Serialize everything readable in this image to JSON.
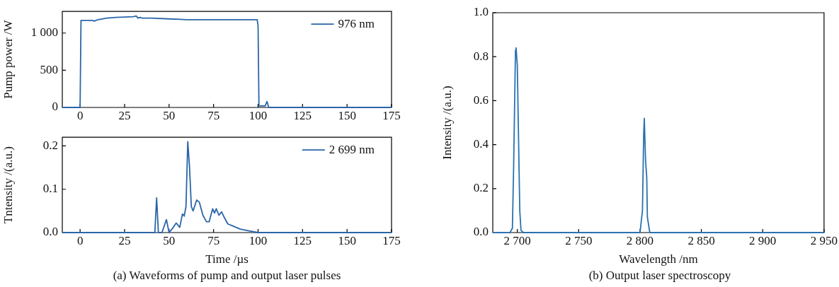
{
  "chart_data": [
    {
      "type": "line",
      "ylabel": "Pump power /W",
      "xlim": [
        -10,
        175
      ],
      "xticks": [
        0,
        25,
        50,
        75,
        100,
        125,
        150,
        175
      ],
      "ylim": [
        0,
        1290
      ],
      "yticks": [
        0,
        500,
        {
          "value": 1000,
          "label": "1 000"
        }
      ],
      "legend": "top right",
      "series": [
        {
          "name": "976 nm",
          "color": "#2b65a8",
          "x": [
            -10,
            -1,
            0,
            0.5,
            7,
            8,
            10,
            15,
            20,
            30,
            31.5,
            32.5,
            33.5,
            35,
            40,
            50,
            60,
            80,
            99.5,
            100,
            100.5,
            104,
            105,
            106,
            110,
            130,
            175
          ],
          "values": [
            0,
            0,
            0,
            1170,
            1170,
            1160,
            1180,
            1200,
            1210,
            1220,
            1230,
            1200,
            1210,
            1200,
            1200,
            1190,
            1180,
            1180,
            1180,
            1100,
            20,
            20,
            80,
            0,
            0,
            0,
            0
          ]
        }
      ]
    },
    {
      "type": "line",
      "xlabel": "Time /µs",
      "ylabel": "Tntensity /(a.u.)",
      "xlim": [
        -10,
        175
      ],
      "xticks": [
        0,
        25,
        50,
        75,
        100,
        125,
        150,
        175
      ],
      "ylim": [
        0,
        0.22
      ],
      "yticks": [
        {
          "value": 0,
          "label": "0.0"
        },
        0.1,
        0.2
      ],
      "legend": "top right",
      "annotations": [
        "(a) Waveforms of pump and output laser pulses"
      ],
      "series": [
        {
          "name": "2 699 nm",
          "color": "#2b65a8",
          "x": [
            -10,
            42,
            43,
            44,
            46,
            48.5,
            50,
            52,
            54,
            56,
            57.5,
            58.5,
            59.5,
            60.5,
            61.5,
            62.5,
            63.5,
            65.5,
            67,
            69,
            71,
            72.5,
            74.5,
            75.5,
            76.5,
            78,
            79.5,
            81,
            83,
            86,
            90,
            95,
            100,
            101,
            175
          ],
          "values": [
            0,
            0,
            0.08,
            0,
            0,
            0.03,
            0,
            0.01,
            0.022,
            0.012,
            0.043,
            0.038,
            0.06,
            0.21,
            0.15,
            0.06,
            0.05,
            0.075,
            0.07,
            0.04,
            0.025,
            0.025,
            0.055,
            0.045,
            0.055,
            0.04,
            0.048,
            0.035,
            0.02,
            0.015,
            0.008,
            0.004,
            0,
            0,
            0
          ]
        }
      ]
    },
    {
      "type": "line",
      "xlabel": "Wavelength /nm",
      "ylabel": "Intensity /(a.u.)",
      "xlim": [
        2680,
        2950
      ],
      "xticks": [
        {
          "value": 2700,
          "label": "2 700"
        },
        {
          "value": 2750,
          "label": "2 750"
        },
        {
          "value": 2800,
          "label": "2 800"
        },
        {
          "value": 2850,
          "label": "2 850"
        },
        {
          "value": 2900,
          "label": "2 900"
        },
        {
          "value": 2950,
          "label": "2 950"
        }
      ],
      "ylim": [
        0,
        1
      ],
      "yticks": [
        {
          "value": 0,
          "label": "0.0"
        },
        0.2,
        0.4,
        0.6,
        0.8,
        {
          "value": 1,
          "label": "1.0"
        }
      ],
      "annotations": [
        "(b) Output laser spectroscopy"
      ],
      "series": [
        {
          "color": "#2a72b0",
          "x": [
            2680,
            2694,
            2696,
            2697,
            2698.5,
            2699,
            2700,
            2702,
            2703,
            2705,
            2800,
            2802,
            2803,
            2803.5,
            2804.5,
            2805.5,
            2806,
            2808,
            2810,
            2950
          ],
          "values": [
            0,
            0,
            0.02,
            0.3,
            0.83,
            0.84,
            0.76,
            0.1,
            0.01,
            0,
            0,
            0.1,
            0.45,
            0.52,
            0.33,
            0.25,
            0.07,
            0,
            0,
            0
          ]
        }
      ]
    }
  ]
}
